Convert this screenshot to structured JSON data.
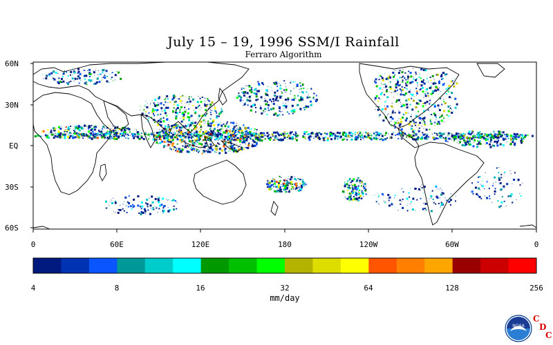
{
  "title": "July 15 – 19, 1996 SSM/I Rainfall",
  "subtitle": "Ferraro Algorithm",
  "map": {
    "lat_labels": [
      "60N",
      "30N",
      "EQ",
      "30S",
      "60S"
    ],
    "lon_labels": [
      "0",
      "60E",
      "120E",
      "180",
      "120W",
      "60W",
      "0"
    ]
  },
  "colorbar": {
    "unit": "mm/day",
    "ticks": [
      "4",
      "8",
      "16",
      "32",
      "64",
      "128",
      "256"
    ],
    "colors": [
      "#001a80",
      "#0033b3",
      "#0a55ff",
      "#009999",
      "#00cccc",
      "#00ffff",
      "#009900",
      "#00c000",
      "#00ff00",
      "#b3b300",
      "#dddd00",
      "#ffff00",
      "#ff5500",
      "#ff7f00",
      "#ffa500",
      "#990000",
      "#cc0000",
      "#ff0000"
    ]
  },
  "logo": {
    "text": "NOAA",
    "cdc_letters": [
      "C",
      "D",
      "C"
    ]
  }
}
